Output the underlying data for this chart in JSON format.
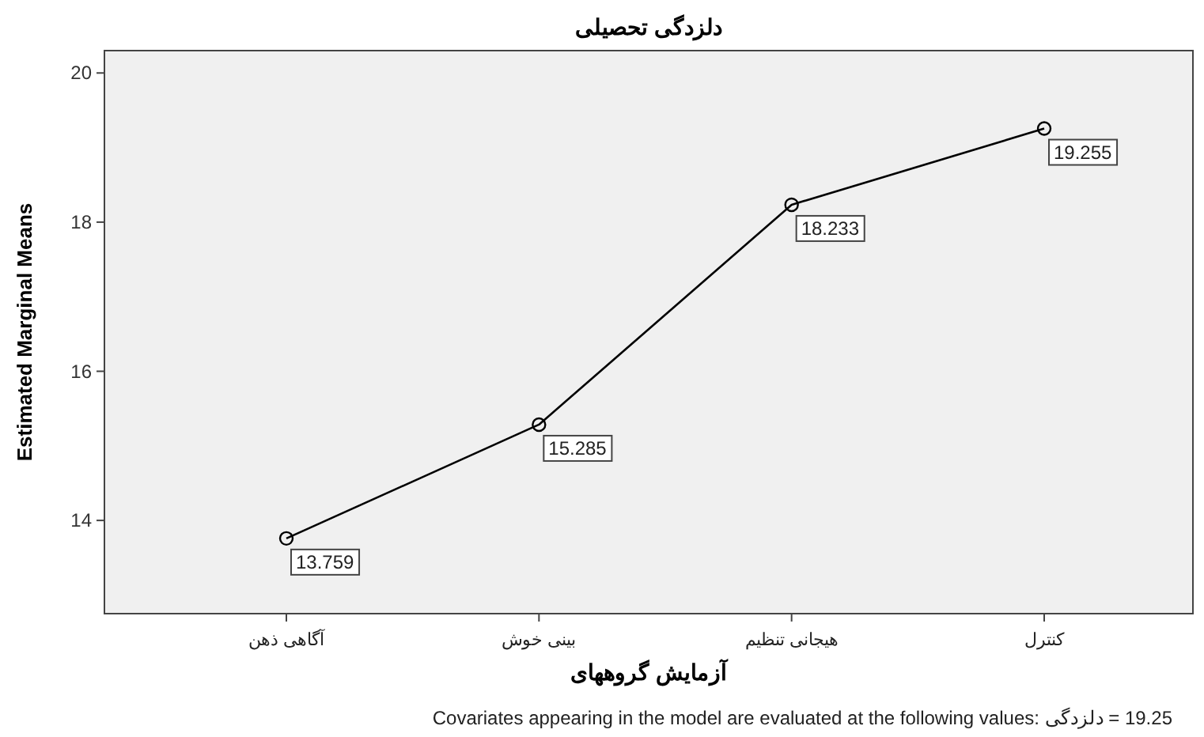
{
  "chart_data": {
    "type": "line",
    "title": "دلزدگی تحصیلی",
    "xlabel": "آزمایش گروههای",
    "ylabel": "Estimated Marginal Means",
    "categories": [
      "آگاهی ذهن",
      "بینی خوش",
      "هیجانی تنظیم",
      "کنترل"
    ],
    "series": [
      {
        "color": "#000000",
        "values": [
          13.759,
          15.285,
          18.233,
          19.255
        ]
      }
    ],
    "ylim": [
      12.75,
      20.3
    ],
    "yticks": [
      14,
      16,
      18,
      20
    ],
    "grid": false,
    "marker": "circle",
    "line_style": "solid",
    "data_labels": true,
    "annotations": [
      "Covariates appearing in the model are evaluated at the following values: دلزدگی = 19.25"
    ]
  }
}
